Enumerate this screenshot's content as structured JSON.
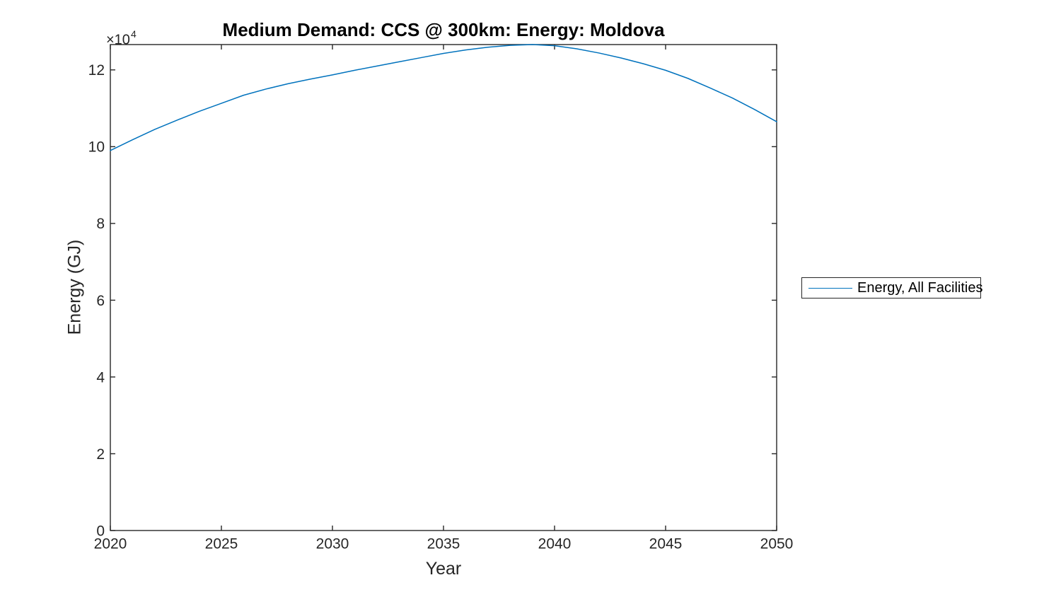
{
  "window": {
    "background": "#ffffff"
  },
  "chart_data": {
    "type": "line",
    "title": "Medium Demand: CCS @ 300km: Energy: Moldova",
    "xlabel": "Year",
    "ylabel": "Energy (GJ)",
    "y_multiplier": {
      "base": "×10",
      "exponent": "4"
    },
    "xlim": [
      2020,
      2050
    ],
    "ylim": [
      0,
      126600
    ],
    "grid": false,
    "axis_color": "#262626",
    "tick_label_color": "#262626",
    "line_color": "#0072BD",
    "xticks": {
      "values": [
        2020,
        2025,
        2030,
        2035,
        2040,
        2045,
        2050
      ],
      "labels": [
        "2020",
        "2025",
        "2030",
        "2035",
        "2040",
        "2045",
        "2050"
      ]
    },
    "yticks": {
      "values": [
        0,
        20000,
        40000,
        60000,
        80000,
        100000,
        120000
      ],
      "labels": [
        "0",
        "2",
        "4",
        "6",
        "8",
        "10",
        "12"
      ]
    },
    "x": [
      2020,
      2021,
      2022,
      2023,
      2024,
      2025,
      2026,
      2027,
      2028,
      2029,
      2030,
      2031,
      2032,
      2033,
      2034,
      2035,
      2036,
      2037,
      2038,
      2039,
      2040,
      2041,
      2042,
      2043,
      2044,
      2045,
      2046,
      2047,
      2048,
      2049,
      2050
    ],
    "series": [
      {
        "name": "Energy, All Facilities",
        "color": "#0072BD",
        "values": [
          99000,
          101800,
          104500,
          106900,
          109200,
          111300,
          113400,
          115000,
          116400,
          117600,
          118700,
          119900,
          121000,
          122100,
          123200,
          124300,
          125200,
          125900,
          126400,
          126600,
          126300,
          125500,
          124400,
          123100,
          121600,
          119900,
          117800,
          115300,
          112700,
          109700,
          106500
        ]
      }
    ],
    "legend": {
      "position": "outside-right",
      "entries": [
        "Energy, All Facilities"
      ]
    }
  }
}
